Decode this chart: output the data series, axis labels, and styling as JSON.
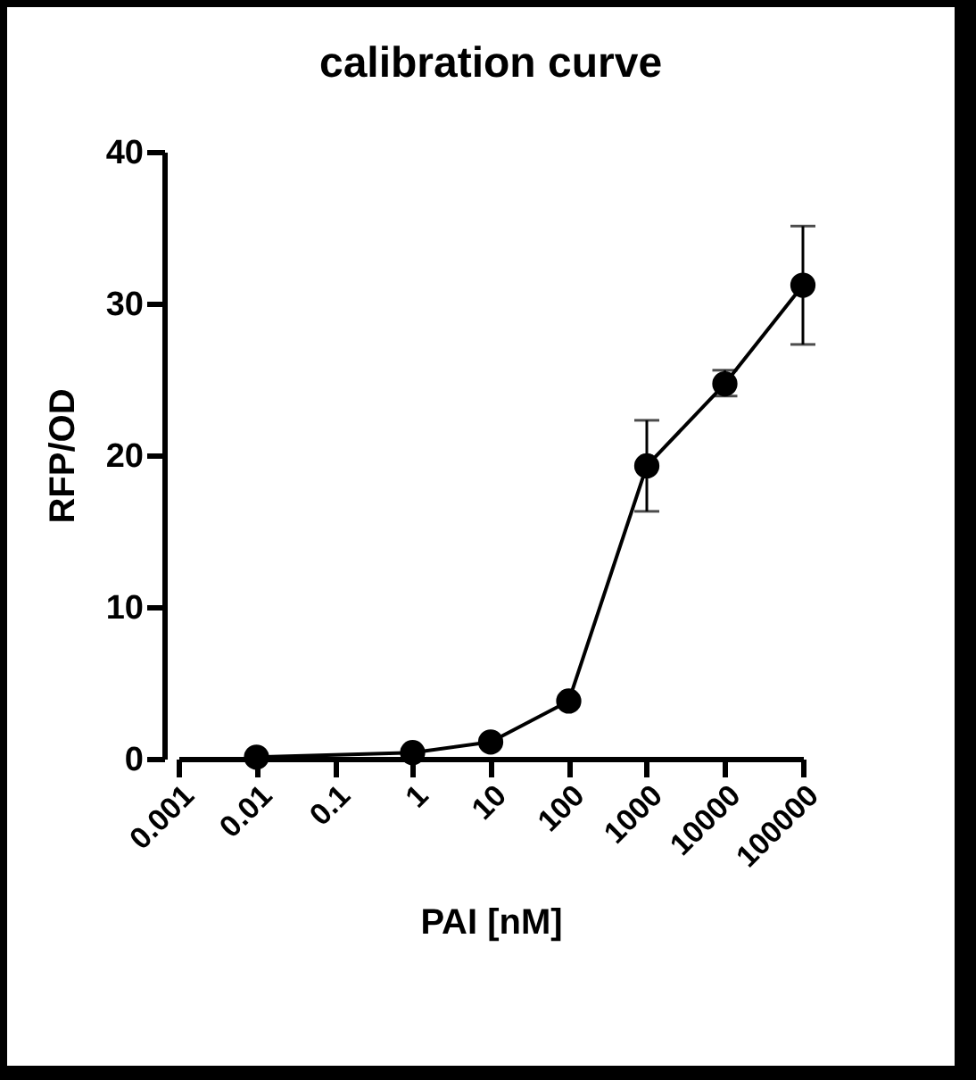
{
  "chart_data": {
    "type": "line",
    "title": "calibration curve",
    "xlabel": "PAI [nM]",
    "ylabel": "RFP/OD",
    "x": [
      0.01,
      1,
      10,
      100,
      1000,
      10000,
      100000
    ],
    "series": [
      {
        "color": "#000000",
        "values": [
          0.1,
          0.4,
          1.1,
          3.8,
          19.3,
          24.7,
          31.2
        ],
        "errors": [
          null,
          null,
          null,
          null,
          [
            16.3,
            22.3
          ],
          [
            23.9,
            25.6
          ],
          [
            27.3,
            35.1
          ]
        ]
      }
    ],
    "xlim": [
      0.001,
      100000
    ],
    "xticks": [
      0.001,
      0.01,
      0.1,
      1,
      10,
      100,
      1000,
      10000,
      100000
    ],
    "ylim": [
      0,
      40
    ],
    "yticks": [
      0,
      10,
      20,
      30,
      40
    ],
    "log": "x",
    "grid": false,
    "marker": "circle",
    "line_style": "solid"
  }
}
